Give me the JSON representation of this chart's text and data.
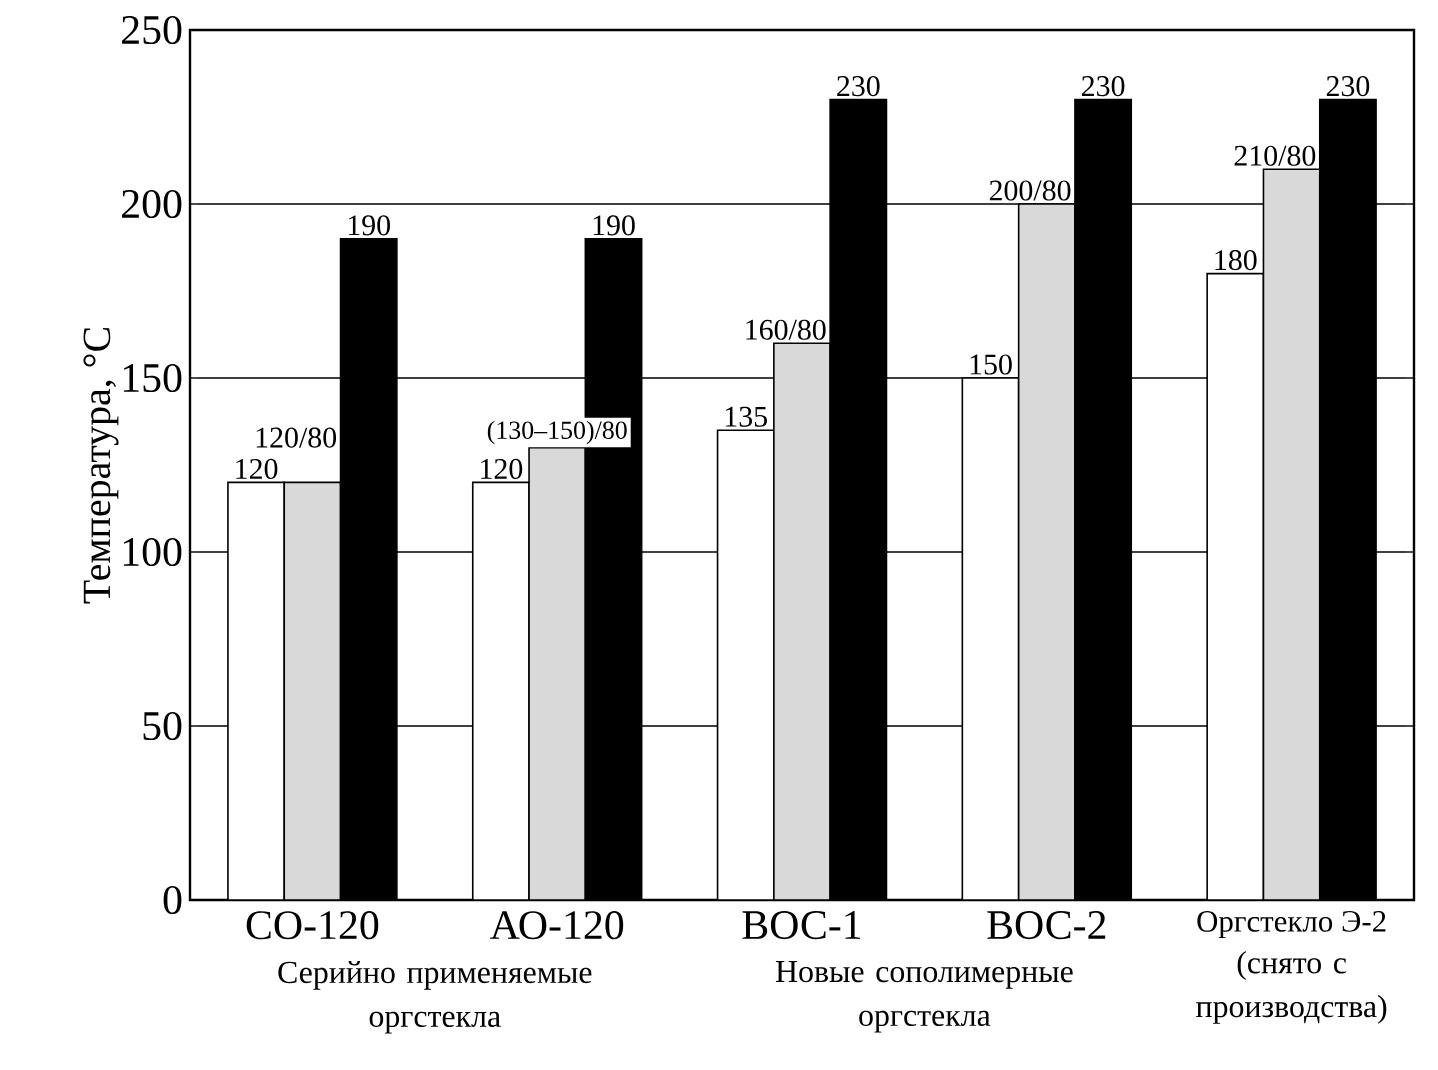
{
  "chart_data": {
    "type": "bar",
    "ylabel": "Температура, °C",
    "categories": [
      "СО-120",
      "АО-120",
      "ВОС-1",
      "ВОС-2",
      "Оргстекло Э-2"
    ],
    "series": [
      {
        "color": "#ffffff",
        "values": [
          120,
          120,
          135,
          150,
          180
        ],
        "value_labels": [
          "120",
          "120",
          "135",
          "150",
          "180"
        ]
      },
      {
        "color": "#d9d9d9",
        "values": [
          120,
          130,
          160,
          200,
          210
        ],
        "value_labels": [
          "120/80",
          "(130–150)/80",
          "160/80",
          "200/80",
          "210/80"
        ]
      },
      {
        "color": "#000000",
        "values": [
          190,
          190,
          230,
          230,
          230
        ],
        "value_labels": [
          "190",
          "190",
          "230",
          "230",
          "230"
        ]
      }
    ],
    "ylim": [
      0,
      250
    ],
    "yticks": [
      0,
      50,
      100,
      150,
      200,
      250
    ],
    "grid": "y",
    "annotations": [
      "Серийно применяемые оргстекла",
      "Новые сополимерные оргстекла",
      "(снято с производства)"
    ]
  }
}
